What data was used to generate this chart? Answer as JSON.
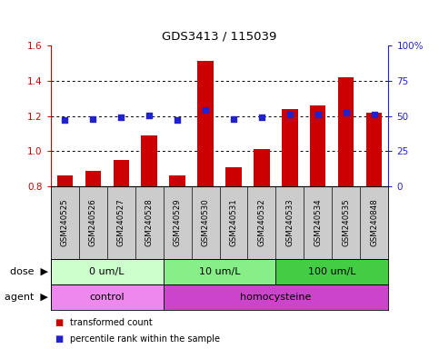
{
  "title": "GDS3413 / 115039",
  "samples": [
    "GSM240525",
    "GSM240526",
    "GSM240527",
    "GSM240528",
    "GSM240529",
    "GSM240530",
    "GSM240531",
    "GSM240532",
    "GSM240533",
    "GSM240534",
    "GSM240535",
    "GSM240848"
  ],
  "transformed_count": [
    0.86,
    0.89,
    0.95,
    1.09,
    0.86,
    1.51,
    0.91,
    1.01,
    1.24,
    1.26,
    1.42,
    1.22
  ],
  "percentile_rank": [
    47,
    48,
    49,
    50,
    47,
    54,
    48,
    49,
    51,
    51,
    52,
    51
  ],
  "ylim_left": [
    0.8,
    1.6
  ],
  "ylim_right": [
    0,
    100
  ],
  "yticks_left": [
    0.8,
    1.0,
    1.2,
    1.4,
    1.6
  ],
  "yticks_right": [
    0,
    25,
    50,
    75,
    100
  ],
  "ytick_labels_right": [
    "0",
    "25",
    "50",
    "75",
    "100%"
  ],
  "bar_color": "#cc0000",
  "dot_color": "#2222cc",
  "dose_groups": [
    {
      "label": "0 um/L",
      "start": 0,
      "end": 4,
      "color": "#ccffcc"
    },
    {
      "label": "10 um/L",
      "start": 4,
      "end": 8,
      "color": "#88ee88"
    },
    {
      "label": "100 um/L",
      "start": 8,
      "end": 12,
      "color": "#44cc44"
    }
  ],
  "agent_groups": [
    {
      "label": "control",
      "start": 0,
      "end": 4,
      "color": "#ee88ee"
    },
    {
      "label": "homocysteine",
      "start": 4,
      "end": 12,
      "color": "#cc44cc"
    }
  ],
  "dose_label": "dose",
  "agent_label": "agent",
  "legend_items": [
    {
      "label": "transformed count",
      "color": "#cc0000"
    },
    {
      "label": "percentile rank within the sample",
      "color": "#2222cc"
    }
  ],
  "tick_color_left": "#cc0000",
  "tick_color_right": "#2222cc",
  "xlabel_bg": "#cccccc"
}
